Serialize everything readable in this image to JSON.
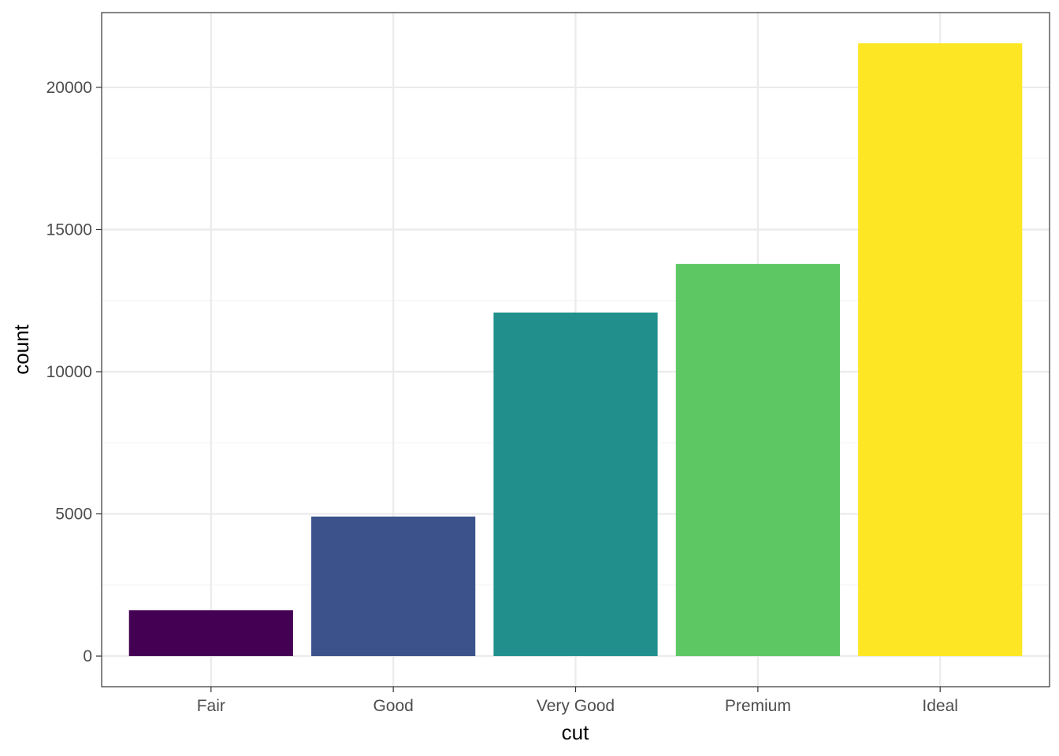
{
  "chart_data": {
    "type": "bar",
    "title": "",
    "xlabel": "cut",
    "ylabel": "count",
    "categories": [
      "Fair",
      "Good",
      "Very Good",
      "Premium",
      "Ideal"
    ],
    "values": [
      1610,
      4906,
      12082,
      13791,
      21551
    ],
    "colors": [
      "#440154",
      "#3b528b",
      "#21908c",
      "#5dc863",
      "#fde725"
    ],
    "ylim": [
      -1078,
      22629
    ],
    "yticks": [
      0,
      5000,
      10000,
      15000,
      20000
    ],
    "ytick_labels": [
      "0",
      "5000",
      "10000",
      "15000",
      "20000"
    ],
    "y_minor_ticks": [
      2500,
      7500,
      12500,
      17500
    ],
    "grid": true,
    "legend": "none",
    "theme": {
      "panel_border": "#333333",
      "grid_major": "#ebebeb",
      "grid_minor": "#f5f5f5",
      "tick_color": "#333333"
    }
  }
}
